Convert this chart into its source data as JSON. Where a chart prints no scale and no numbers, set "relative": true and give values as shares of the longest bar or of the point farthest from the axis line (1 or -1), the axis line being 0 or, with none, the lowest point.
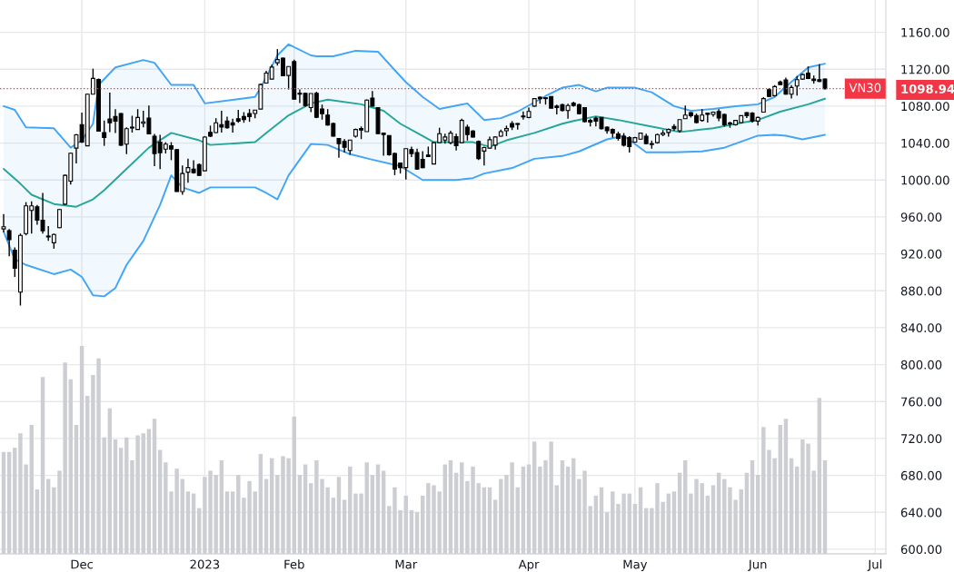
{
  "chart_data": [
    {
      "type": "candlestick",
      "color": "#000000",
      "categories": [
        null,
        null,
        null,
        null,
        null,
        null,
        null,
        null,
        null,
        null,
        null,
        null,
        null,
        null,
        "Dec",
        null,
        null,
        null,
        null,
        null,
        null,
        null,
        null,
        null,
        null,
        null,
        null,
        null,
        null,
        null,
        null,
        null,
        null,
        null,
        null,
        null,
        "2023",
        null,
        null,
        null,
        null,
        null,
        null,
        null,
        null,
        null,
        null,
        null,
        null,
        null,
        null,
        null,
        "Feb",
        null,
        null,
        null,
        null,
        null,
        null,
        null,
        null,
        null,
        null,
        null,
        null,
        null,
        null,
        null,
        null,
        null,
        null,
        null,
        "Mar",
        null,
        null,
        null,
        null,
        null,
        null,
        null,
        null,
        null,
        null,
        null,
        null,
        null,
        null,
        null,
        null,
        null,
        null,
        null,
        null,
        null,
        "Apr",
        null,
        null,
        null,
        null,
        null,
        null,
        null,
        null,
        null,
        null,
        null,
        null,
        null,
        null,
        null,
        null,
        null,
        null,
        "May",
        null,
        null,
        null,
        null,
        null,
        null,
        null,
        null,
        null,
        null,
        null,
        null,
        null,
        null,
        null,
        null,
        null,
        null,
        null,
        null,
        null,
        "Jun",
        null,
        null,
        null,
        null,
        null,
        null,
        null,
        null,
        null,
        null,
        null,
        null,
        null,
        null,
        null,
        null,
        null,
        null,
        null,
        null,
        "Jul",
        null
      ],
      "ohlc": [
        [
          947,
          963,
          943.5,
          949.4
        ],
        [
          945,
          947,
          917.5,
          935.4
        ],
        [
          924,
          927,
          895,
          904.5
        ],
        [
          878.5,
          942,
          864,
          940
        ],
        [
          942,
          976,
          940,
          972
        ],
        [
          967,
          977,
          942,
          972
        ],
        [
          971,
          973,
          951.6,
          956.5
        ],
        [
          956.5,
          986,
          942,
          945
        ],
        [
          939.3,
          950,
          934,
          938.3
        ],
        [
          932,
          942,
          925.6,
          941
        ],
        [
          948.4,
          968.5,
          947.8,
          968
        ],
        [
          973.8,
          1006,
          973,
          1005
        ],
        [
          998.8,
          1029.6,
          995,
          1029
        ],
        [
          1034.5,
          1050,
          1018,
          1049
        ],
        [
          1060,
          1073,
          1040,
          1041
        ],
        [
          1037,
          1093.7,
          1037,
          1093
        ],
        [
          1093,
          1120.6,
          1093,
          1110
        ],
        [
          1109,
          1110,
          1053,
          1053
        ],
        [
          1051.4,
          1064.4,
          1037,
          1046
        ],
        [
          1066,
          1094.6,
          1052,
          1062
        ],
        [
          1068.7,
          1076.8,
          1050.8,
          1063.8
        ],
        [
          1072,
          1072.5,
          1037,
          1037.8
        ],
        [
          1038.8,
          1057,
          1028,
          1055.6
        ],
        [
          1057.3,
          1069.6,
          1051.4,
          1056.3
        ],
        [
          1054.7,
          1076.8,
          1054.7,
          1067.7
        ],
        [
          1061.5,
          1075,
          1057,
          1063
        ],
        [
          1067,
          1080.7,
          1050,
          1050
        ],
        [
          1047.5,
          1050,
          1015,
          1028.7
        ],
        [
          1041,
          1049,
          1011.8,
          1029.6
        ],
        [
          1033.5,
          1041,
          1028.7,
          1038.8
        ],
        [
          1037,
          1041,
          1021.5,
          1033.5
        ],
        [
          1033,
          1033.5,
          987.4,
          987.4
        ],
        [
          987.4,
          1015.7,
          984,
          1007
        ],
        [
          1008.5,
          1023,
          997,
          1013.4
        ],
        [
          1011.8,
          1021.5,
          1006.9,
          1008
        ],
        [
          1016.7,
          1018,
          1004.6,
          1005
        ],
        [
          1010,
          1047.5,
          1010,
          1046.5
        ],
        [
          1051.7,
          1058.9,
          1046.5,
          1047.5
        ],
        [
          1051.4,
          1067,
          1050.8,
          1062
        ],
        [
          1060,
          1075,
          1051.4,
          1057.3
        ],
        [
          1063.8,
          1068.7,
          1055.6,
          1056.7
        ],
        [
          1062,
          1066.4,
          1051.4,
          1059.5
        ],
        [
          1066.4,
          1076,
          1062,
          1063.8
        ],
        [
          1068.7,
          1073.5,
          1062,
          1065.4
        ],
        [
          1072,
          1076.8,
          1063,
          1068.7
        ],
        [
          1072,
          1076,
          1067,
          1075.8
        ],
        [
          1076.8,
          1104.4,
          1076.8,
          1103.4
        ],
        [
          1105,
          1118.4,
          1104.4,
          1115.8
        ],
        [
          1109.3,
          1124.9,
          1109.3,
          1122.3
        ],
        [
          1127,
          1141.8,
          1124,
          1130.4
        ],
        [
          1132,
          1132.7,
          1113,
          1113
        ],
        [
          1113.2,
          1123,
          1098,
          1123
        ],
        [
          1128.2,
          1130.4,
          1087.5,
          1087.5
        ],
        [
          1094,
          1098,
          1083.3,
          1093
        ],
        [
          1094,
          1094.7,
          1079.4,
          1080.7
        ],
        [
          1078.4,
          1093.7,
          1073.5,
          1093.7
        ],
        [
          1094,
          1095.6,
          1067,
          1068
        ],
        [
          1076.8,
          1081.7,
          1065.4,
          1071.9
        ],
        [
          1070.3,
          1076.8,
          1058.9,
          1059.6
        ],
        [
          1061.2,
          1062.2,
          1046.9,
          1047.5
        ],
        [
          1045,
          1045,
          1024.2,
          1039.4
        ],
        [
          1041.7,
          1044.3,
          1029.7,
          1035.5
        ],
        [
          1032,
          1043.3,
          1027.4,
          1043.3
        ],
        [
          1047.5,
          1055.7,
          1045.9,
          1054.7
        ],
        [
          1055.7,
          1058,
          1044.3,
          1054.1
        ],
        [
          1052.4,
          1087.2,
          1052.4,
          1086.6
        ],
        [
          1088.8,
          1096.3,
          1079.4,
          1080
        ],
        [
          1078.4,
          1079,
          1050,
          1050.2
        ],
        [
          1050.8,
          1051,
          1026.4,
          1049.2
        ],
        [
          1048.2,
          1048.2,
          1026.4,
          1027.4
        ],
        [
          1028.7,
          1029.7,
          1005.3,
          1011.8
        ],
        [
          1018.3,
          1019,
          1007,
          1013.4
        ],
        [
          1013.4,
          1033.9,
          1000.4,
          1033.9
        ],
        [
          1033,
          1036.2,
          1024.8,
          1028.7
        ],
        [
          1029.7,
          1033.9,
          1011.1,
          1011.8
        ],
        [
          1022.2,
          1031.3,
          1012.8,
          1013.4
        ],
        [
          1027.1,
          1036.2,
          1024.8,
          1025.5
        ],
        [
          1017.3,
          1040.4,
          1017.3,
          1040.4
        ],
        [
          1040.4,
          1056.6,
          1040.4,
          1050.2
        ],
        [
          1043.3,
          1050.2,
          1039.4,
          1046.6
        ],
        [
          1040.4,
          1053.4,
          1038.5,
          1050.8
        ],
        [
          1046.9,
          1050.2,
          1032,
          1037.2
        ],
        [
          1040.4,
          1066.4,
          1040.4,
          1064.5
        ],
        [
          1057.3,
          1059.9,
          1042.7,
          1049.2
        ],
        [
          1053.1,
          1054,
          1046,
          1046.6
        ],
        [
          1041.7,
          1042.7,
          1021.6,
          1023.2
        ],
        [
          1031.3,
          1036.2,
          1015.7,
          1035.2
        ],
        [
          1034.5,
          1046.9,
          1033.9,
          1043.7
        ],
        [
          1037.8,
          1047.5,
          1032.9,
          1046.6
        ],
        [
          1047.5,
          1054.7,
          1046.9,
          1052.4
        ],
        [
          1053.4,
          1058.9,
          1047.5,
          1055.7
        ],
        [
          1061.2,
          1063.8,
          1054.1,
          1057.3
        ],
        [
          1061.2,
          1061.5,
          1054.7,
          1060.2
        ],
        [
          1069.3,
          1074.2,
          1065.4,
          1068.4
        ],
        [
          1067.7,
          1078.4,
          1067,
          1074.2
        ],
        [
          1080,
          1088.2,
          1079.4,
          1088.2
        ],
        [
          1089.8,
          1090.5,
          1082.7,
          1088.2
        ],
        [
          1089.1,
          1089.8,
          1081.7,
          1088.2
        ],
        [
          1090.5,
          1090.5,
          1077.8,
          1077.8
        ],
        [
          1080,
          1081.7,
          1071,
          1078.4
        ],
        [
          1081.7,
          1082.7,
          1074.2,
          1075.2
        ],
        [
          1075.2,
          1082.7,
          1066.4,
          1080.7
        ],
        [
          1083.3,
          1084.9,
          1079.4,
          1080.7
        ],
        [
          1081.7,
          1082.7,
          1071,
          1071.9
        ],
        [
          1078.4,
          1078.4,
          1062.2,
          1063.2
        ],
        [
          1064.5,
          1066.4,
          1058,
          1062.8
        ],
        [
          1067.1,
          1068.7,
          1058,
          1063.8
        ],
        [
          1067.7,
          1067.7,
          1054.7,
          1055.7
        ],
        [
          1057.3,
          1058,
          1050.2,
          1053.4
        ],
        [
          1054.7,
          1055.7,
          1045.9,
          1050.8
        ],
        [
          1049.8,
          1052.4,
          1042.7,
          1045
        ],
        [
          1047.5,
          1050.8,
          1036.2,
          1037.8
        ],
        [
          1045.9,
          1047.5,
          1029.7,
          1036.2
        ],
        [
          1041,
          1046.6,
          1040.4,
          1045.9
        ],
        [
          1044.3,
          1051.5,
          1043.7,
          1050.8
        ],
        [
          1047.5,
          1050.2,
          1038.5,
          1039.4
        ],
        [
          1039.4,
          1042.7,
          1033.9,
          1038.5
        ],
        [
          1040.4,
          1050.2,
          1039.4,
          1049.2
        ],
        [
          1049.2,
          1054.1,
          1047.5,
          1050.8
        ],
        [
          1051.5,
          1055.7,
          1046.9,
          1054.7
        ],
        [
          1058,
          1060.6,
          1053.4,
          1055.7
        ],
        [
          1053.4,
          1065.4,
          1051.5,
          1065.4
        ],
        [
          1066.4,
          1080.7,
          1066.4,
          1070.3
        ],
        [
          1072.9,
          1073.5,
          1067.7,
          1069.7
        ],
        [
          1069.7,
          1071.9,
          1061.2,
          1062.2
        ],
        [
          1064.5,
          1076.8,
          1063.2,
          1070.3
        ],
        [
          1072.6,
          1072.9,
          1062.2,
          1071
        ],
        [
          1071,
          1074.2,
          1068.7,
          1073.5
        ],
        [
          1074.2,
          1076.8,
          1063.8,
          1067.1
        ],
        [
          1071,
          1071.9,
          1058,
          1059.9
        ],
        [
          1061.8,
          1063.2,
          1056.6,
          1060.9
        ],
        [
          1059.9,
          1064.5,
          1058.9,
          1064.5
        ],
        [
          1062.2,
          1069.7,
          1061.2,
          1069.7
        ],
        [
          1072.9,
          1073.5,
          1067.1,
          1069.7
        ],
        [
          1072.6,
          1073.5,
          1062.2,
          1063.8
        ],
        [
          1063.8,
          1068.7,
          1058.9,
          1067.7
        ],
        [
          1073.5,
          1089.8,
          1073.5,
          1088.2
        ],
        [
          1097.9,
          1099.5,
          1089.8,
          1090.5
        ],
        [
          1091.4,
          1102.8,
          1090.5,
          1101.2
        ],
        [
          1106.1,
          1107.7,
          1102.8,
          1103.4
        ],
        [
          1108.3,
          1110.9,
          1092.4,
          1093
        ],
        [
          1093,
          1102.8,
          1088.2,
          1100.2
        ],
        [
          1101.8,
          1112.6,
          1091.4,
          1108.7
        ],
        [
          1109.3,
          1115.2,
          1108.7,
          1114.2
        ],
        [
          1115.8,
          1123,
          1109.3,
          1110
        ],
        [
          1109.3,
          1113.2,
          1104.4,
          1107.7
        ],
        [
          1108.7,
          1125.5,
          1106.1,
          1106.7
        ],
        [
          1109.3,
          1109.9,
          1098,
          1098.94
        ],
        null,
        null,
        null,
        null,
        null,
        null,
        null,
        null,
        null,
        null
      ],
      "series": [
        {
          "type": "line",
          "color": "#42a5f5",
          "values": [
            1080,
            null,
            1076,
            null,
            1057,
            null,
            null,
            null,
            null,
            1056,
            null,
            null,
            1035,
            null,
            1043,
            null,
            1061,
            1103,
            null,
            null,
            1122,
            null,
            null,
            null,
            null,
            1130,
            null,
            1127,
            null,
            null,
            1103,
            null,
            null,
            null,
            1103,
            null,
            1083,
            null,
            null,
            null,
            null,
            null,
            null,
            null,
            null,
            1090,
            1100,
            null,
            null,
            1135,
            null,
            1147,
            null,
            null,
            null,
            1135,
            1134,
            null,
            null,
            1134,
            null,
            null,
            null,
            1140,
            null,
            null,
            null,
            1139,
            null,
            null,
            1119,
            null,
            1106,
            null,
            null,
            1090,
            null,
            null,
            1077,
            null,
            null,
            null,
            null,
            1083,
            1077,
            null,
            1065,
            null,
            null,
            1067,
            null,
            null,
            1074,
            null,
            null,
            null,
            null,
            1091,
            null,
            null,
            1100,
            null,
            null,
            1103,
            null,
            null,
            1096,
            null,
            1100,
            null,
            null,
            null,
            null,
            1100,
            null,
            null,
            1095,
            null,
            null,
            null,
            1080,
            null,
            null,
            1075,
            null,
            null,
            null,
            1077,
            null,
            null,
            null,
            1080,
            null,
            null,
            null,
            1082,
            null,
            null,
            1090,
            null,
            1101,
            null,
            null,
            null,
            1122,
            null,
            null,
            1126,
            null,
            null,
            null,
            null,
            null,
            null,
            null,
            null,
            null,
            null
          ]
        },
        {
          "type": "line",
          "color": "#26a69a",
          "upper": [
            1080,
            null,
            1076,
            null,
            1057,
            null,
            null,
            null,
            null,
            1056,
            null,
            null,
            1035,
            null,
            1043,
            null,
            1061,
            1103,
            null,
            null,
            1122,
            null,
            null,
            null,
            null,
            1130,
            null,
            1127,
            null,
            null,
            1103,
            null,
            null,
            null,
            1103,
            null,
            1083,
            null,
            null,
            null,
            null,
            null,
            null,
            null,
            null,
            1090,
            1100,
            null,
            null,
            1135,
            null,
            1147,
            null,
            null,
            null,
            1135,
            1134,
            null,
            null,
            1134,
            null,
            null,
            null,
            1140,
            null,
            null,
            null,
            1139,
            null,
            null,
            1119,
            null,
            1106,
            null,
            null,
            1090,
            null,
            null,
            1077,
            null,
            null,
            null,
            null,
            1083,
            1077,
            null,
            1065,
            null,
            null,
            1067,
            null,
            null,
            1074,
            null,
            null,
            null,
            null,
            1091,
            null,
            null,
            1100,
            null,
            null,
            1103,
            null,
            null,
            1096,
            null,
            1100,
            null,
            null,
            null,
            null,
            1100,
            null,
            null,
            1095,
            null,
            null,
            null,
            1080,
            null,
            null,
            1075,
            null,
            null,
            null,
            1077,
            null,
            null,
            null,
            1080,
            null,
            null,
            null,
            1082,
            null,
            null,
            1090,
            null,
            1101,
            null,
            null,
            null,
            1122,
            null,
            null,
            1126,
            null,
            null,
            null,
            null,
            null,
            null,
            null,
            null,
            null,
            null
          ],
          "lower": [
            944,
            null,
            914,
            null,
            908,
            null,
            null,
            null,
            null,
            898,
            null,
            null,
            903,
            null,
            895,
            null,
            875,
            874,
            null,
            null,
            883,
            null,
            null,
            null,
            null,
            934,
            null,
            960,
            null,
            null,
            1005,
            null,
            null,
            null,
            988,
            null,
            989,
            null,
            null,
            null,
            null,
            null,
            null,
            null,
            null,
            992,
            989,
            null,
            null,
            979,
            null,
            1005,
            null,
            null,
            null,
            1039,
            1039,
            null,
            null,
            1036,
            null,
            null,
            null,
            1027,
            null,
            null,
            null,
            1021,
            null,
            null,
            1016,
            null,
            1012,
            null,
            null,
            1000,
            null,
            null,
            1000,
            null,
            null,
            null,
            null,
            1001,
            1002,
            null,
            1007,
            null,
            null,
            1011,
            null,
            null,
            1016,
            null,
            null,
            null,
            null,
            1024,
            null,
            null,
            1026,
            null,
            null,
            1031,
            null,
            null,
            1040,
            null,
            1044,
            null,
            null,
            null,
            null,
            1038,
            null,
            null,
            1030,
            null,
            null,
            null,
            1030,
            null,
            null,
            1030,
            null,
            null,
            null,
            1033,
            null,
            null,
            null,
            1038,
            null,
            null,
            null,
            1048,
            null,
            null,
            1049,
            null,
            1048,
            null,
            null,
            null,
            1045,
            null,
            null,
            1049,
            null,
            null,
            null,
            null,
            null,
            null,
            null,
            null,
            null,
            null
          ],
          "values": [
            1012,
            null,
            null,
            996,
            null,
            984,
            null,
            null,
            null,
            974,
            null,
            null,
            null,
            971,
            null,
            null,
            979,
            null,
            989,
            null,
            null,
            null,
            1012,
            null,
            null,
            null,
            1035,
            null,
            null,
            null,
            1051,
            null,
            null,
            null,
            null,
            1043,
            null,
            1038,
            null,
            null,
            null,
            null,
            null,
            null,
            null,
            1041,
            null,
            1051,
            null,
            null,
            null,
            1070,
            null,
            null,
            null,
            1083,
            null,
            null,
            1087,
            null,
            null,
            null,
            null,
            null,
            1082,
            null,
            null,
            null,
            1075,
            null,
            null,
            1061,
            null,
            null,
            1051,
            null,
            null,
            1041,
            null,
            null,
            null,
            null,
            null,
            null,
            1041,
            null,
            null,
            1036,
            null,
            null,
            1043,
            null,
            null,
            null,
            null,
            1051,
            null,
            null,
            null,
            null,
            1061,
            null,
            1064,
            null,
            null,
            null,
            1069,
            null,
            null,
            null,
            1065,
            null,
            null,
            null,
            null,
            1059,
            null,
            null,
            null,
            null,
            null,
            1052,
            null,
            null,
            null,
            null,
            null,
            1056,
            null,
            null,
            null,
            null,
            1062,
            null,
            null,
            1065,
            null,
            null,
            null,
            1074,
            null,
            null,
            null,
            null,
            1082,
            null,
            null,
            1088,
            null,
            null,
            null,
            null,
            null,
            null,
            null,
            null,
            null,
            null
          ]
        },
        {
          "type": "line",
          "color": "#42a5f5",
          "values": [
            944,
            null,
            914,
            null,
            908,
            null,
            null,
            null,
            null,
            898,
            null,
            null,
            903,
            null,
            895,
            null,
            875,
            null,
            874,
            null,
            883,
            null,
            908,
            null,
            null,
            934,
            null,
            null,
            973,
            null,
            1005,
            null,
            992,
            null,
            null,
            986,
            null,
            992,
            null,
            null,
            null,
            null,
            null,
            null,
            null,
            992,
            null,
            986,
            null,
            979,
            null,
            1005,
            null,
            null,
            null,
            1039,
            null,
            null,
            1038,
            null,
            null,
            null,
            1028,
            null,
            null,
            null,
            1022,
            null,
            null,
            null,
            null,
            1015,
            null,
            null,
            null,
            1000,
            null,
            null,
            null,
            null,
            null,
            1000,
            null,
            null,
            1002,
            null,
            1007,
            null,
            null,
            null,
            null,
            1013,
            null,
            null,
            null,
            1023,
            null,
            null,
            null,
            null,
            1026,
            null,
            null,
            1031,
            null,
            null,
            null,
            null,
            1044,
            null,
            null,
            1048,
            null,
            null,
            null,
            1030,
            null,
            null,
            null,
            null,
            1030,
            null,
            null,
            null,
            null,
            1031,
            null,
            null,
            null,
            1035,
            null,
            null,
            null,
            null,
            null,
            1048,
            null,
            null,
            1049,
            null,
            1048,
            null,
            null,
            1044,
            null,
            null,
            null,
            1049,
            null,
            null,
            null,
            null,
            null,
            null,
            null,
            null,
            null,
            null
          ]
        }
      ],
      "ylim": [
        595,
        1195
      ],
      "yticks": [
        {
          "value": 600,
          "label": "600.00"
        },
        {
          "value": 640,
          "label": "640.00"
        },
        {
          "value": 680,
          "label": "680.00"
        },
        {
          "value": 720,
          "label": "720.00"
        },
        {
          "value": 760,
          "label": "760.00"
        },
        {
          "value": 800,
          "label": "800.00"
        },
        {
          "value": 840,
          "label": "840.00"
        },
        {
          "value": 880,
          "label": "880.00"
        },
        {
          "value": 920,
          "label": "920.00"
        },
        {
          "value": 960,
          "label": "960.00"
        },
        {
          "value": 1000,
          "label": "1000.00"
        },
        {
          "value": 1040,
          "label": "1040.00"
        },
        {
          "value": 1080,
          "label": "1080.00"
        },
        {
          "value": 1098.94,
          "label": "1098.94"
        },
        {
          "value": 1120,
          "label": "1120.00"
        },
        {
          "value": 1160,
          "label": "1160.00"
        }
      ],
      "ref_lines": [
        {
          "axis": "y",
          "value": 1098.94,
          "label": "VN30",
          "color": "#f23645",
          "line_style": "dotted"
        }
      ],
      "grid": true
    },
    {
      "type": "bar",
      "relative": true,
      "color": "#cdced3",
      "categories": [
        null,
        null,
        null,
        null,
        null,
        null,
        null,
        null,
        null,
        null,
        null,
        null,
        null,
        null,
        null,
        null,
        null,
        null,
        null,
        null,
        null,
        null,
        null,
        null,
        null,
        null,
        null,
        null,
        null,
        null,
        null,
        null,
        null,
        null,
        null,
        null,
        null,
        null,
        null,
        null,
        null,
        null,
        null,
        null,
        null,
        null,
        null,
        null,
        null,
        null,
        null,
        null,
        null,
        null,
        null,
        null,
        null,
        null,
        null,
        null,
        null,
        null,
        null,
        null,
        null,
        null,
        null,
        null,
        null,
        null,
        null,
        null,
        null,
        null,
        null,
        null,
        null,
        null,
        null,
        null,
        null,
        null,
        null,
        null,
        null,
        null,
        null,
        null,
        null,
        null,
        null,
        null,
        null,
        null,
        null,
        null,
        null,
        null,
        null,
        null,
        null,
        null,
        null,
        null,
        null,
        null,
        null,
        null,
        null,
        null,
        null,
        null,
        null,
        null,
        null,
        null,
        null,
        null,
        null,
        null,
        null,
        null,
        null,
        null,
        null,
        null,
        null,
        null,
        null,
        null,
        null,
        null,
        null,
        null,
        null,
        null,
        null,
        null,
        null,
        null,
        null,
        null,
        null,
        null,
        null,
        null,
        null,
        null,
        null,
        null,
        null,
        null,
        null,
        null,
        null,
        null,
        null,
        null
      ],
      "values": [
        0.49,
        0.49,
        0.51,
        0.58,
        0.43,
        0.62,
        0.31,
        0.85,
        0.36,
        0.32,
        0.4,
        0.92,
        0.84,
        0.62,
        1.0,
        0.76,
        0.86,
        0.94,
        0.56,
        0.7,
        0.55,
        0.51,
        0.56,
        0.45,
        0.57,
        0.58,
        0.6,
        0.65,
        0.5,
        0.44,
        0.3,
        0.41,
        0.36,
        0.3,
        0.29,
        0.22,
        0.37,
        0.4,
        0.38,
        0.45,
        0.3,
        0.3,
        0.38,
        0.27,
        0.35,
        0.3,
        0.48,
        0.36,
        0.46,
        0.38,
        0.47,
        0.46,
        0.66,
        0.38,
        0.43,
        0.34,
        0.45,
        0.36,
        0.32,
        0.27,
        0.37,
        0.26,
        0.42,
        0.29,
        0.29,
        0.44,
        0.38,
        0.43,
        0.4,
        0.23,
        0.32,
        0.21,
        0.28,
        0.21,
        0.2,
        0.28,
        0.34,
        0.33,
        0.3,
        0.43,
        0.45,
        0.39,
        0.44,
        0.35,
        0.42,
        0.34,
        0.32,
        0.32,
        0.26,
        0.36,
        0.38,
        0.44,
        0.32,
        0.42,
        0.43,
        0.54,
        0.42,
        0.45,
        0.54,
        0.33,
        0.45,
        0.42,
        0.46,
        0.36,
        0.4,
        0.23,
        0.28,
        0.32,
        0.2,
        0.3,
        0.24,
        0.29,
        0.29,
        0.24,
        0.32,
        0.22,
        0.22,
        0.34,
        0.25,
        0.29,
        0.3,
        0.39,
        0.45,
        0.29,
        0.36,
        0.34,
        0.28,
        0.33,
        0.39,
        0.36,
        0.32,
        0.26,
        0.31,
        0.39,
        0.45,
        0.38,
        0.61,
        0.5,
        0.46,
        0.62,
        0.65,
        0.46,
        0.42,
        0.55,
        0.53,
        0.4,
        0.75,
        0.45,
        null,
        null,
        null,
        null,
        null,
        null,
        null,
        null,
        null,
        null
      ]
    }
  ]
}
